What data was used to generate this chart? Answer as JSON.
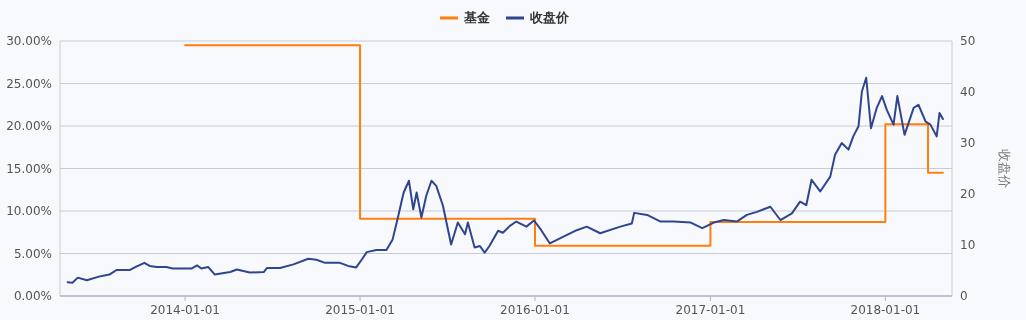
{
  "chart_data": {
    "type": "line",
    "grid": "y",
    "legend": "top",
    "y2label": "收盘价",
    "xlim": [
      "2013-04-15",
      "2018-05-20"
    ],
    "xticks": [
      "2014-01-01",
      "2015-01-01",
      "2016-01-01",
      "2017-01-01",
      "2018-01-01"
    ],
    "ylim": [
      0,
      30
    ],
    "yticks": [
      {
        "value": 0,
        "label": "0.00%"
      },
      {
        "value": 5,
        "label": "5.00%"
      },
      {
        "value": 10,
        "label": "10.00%"
      },
      {
        "value": 15,
        "label": "15.00%"
      },
      {
        "value": 20,
        "label": "20.00%"
      },
      {
        "value": 25,
        "label": "25.00%"
      },
      {
        "value": 30,
        "label": "30.00%"
      }
    ],
    "y2lim": [
      0,
      50
    ],
    "y2ticks": [
      0,
      10,
      20,
      30,
      40,
      50
    ],
    "series": [
      {
        "name": "基金",
        "type": "step",
        "color": "#ff7f0e",
        "x": [
          "2014-01-01",
          "2015-01-01",
          "2016-01-01",
          "2017-01-01",
          "2018-01-01",
          "2018-03-31",
          "2018-05-01"
        ],
        "values": [
          29.5,
          9.1,
          5.9,
          8.7,
          20.2,
          14.5,
          14.5
        ]
      },
      {
        "name": "收盘价",
        "type": "line",
        "axis": "y2",
        "color": "#2f4590",
        "x": [
          "2013-05-01",
          "2013-05-11",
          "2013-05-22",
          "2013-06-10",
          "2013-07-05",
          "2013-07-27",
          "2013-08-11",
          "2013-09-08",
          "2013-09-20",
          "2013-10-08",
          "2013-10-19",
          "2013-11-03",
          "2013-11-23",
          "2013-12-06",
          "2014-01-15",
          "2014-01-26",
          "2014-02-04",
          "2014-02-18",
          "2014-03-04",
          "2014-04-05",
          "2014-04-19",
          "2014-05-16",
          "2014-06-14",
          "2014-06-21",
          "2014-07-18",
          "2014-08-15",
          "2014-09-15",
          "2014-10-02",
          "2014-10-20",
          "2014-11-20",
          "2014-12-07",
          "2014-12-24",
          "2015-01-05",
          "2015-01-15",
          "2015-02-04",
          "2015-02-25",
          "2015-03-10",
          "2015-03-21",
          "2015-03-28",
          "2015-04-02",
          "2015-04-13",
          "2015-04-22",
          "2015-04-29",
          "2015-05-09",
          "2015-05-19",
          "2015-05-30",
          "2015-06-09",
          "2015-06-23",
          "2015-07-10",
          "2015-07-24",
          "2015-08-08",
          "2015-08-14",
          "2015-08-28",
          "2015-09-08",
          "2015-09-18",
          "2015-09-28",
          "2015-10-16",
          "2015-10-26",
          "2015-11-09",
          "2015-11-23",
          "2015-12-14",
          "2015-12-30",
          "2016-01-14",
          "2016-02-01",
          "2016-02-22",
          "2016-03-28",
          "2016-04-18",
          "2016-05-16",
          "2016-06-27",
          "2016-07-21",
          "2016-07-26",
          "2016-08-22",
          "2016-09-19",
          "2016-10-16",
          "2016-11-21",
          "2016-12-15",
          "2017-01-08",
          "2017-01-29",
          "2017-02-25",
          "2017-03-18",
          "2017-04-08",
          "2017-05-06",
          "2017-05-27",
          "2017-06-20",
          "2017-07-07",
          "2017-07-20",
          "2017-07-31",
          "2017-08-18",
          "2017-09-08",
          "2017-09-18",
          "2017-10-02",
          "2017-10-16",
          "2017-10-26",
          "2017-11-06",
          "2017-11-13",
          "2017-11-22",
          "2017-12-02",
          "2017-12-14",
          "2017-12-25",
          "2018-01-04",
          "2018-01-18",
          "2018-01-26",
          "2018-02-10",
          "2018-03-01",
          "2018-03-11",
          "2018-03-26",
          "2018-04-05",
          "2018-04-18",
          "2018-04-24",
          "2018-05-01"
        ],
        "values": [
          2.7,
          2.6,
          3.6,
          3.1,
          3.8,
          4.2,
          5.1,
          5.1,
          5.7,
          6.5,
          5.9,
          5.7,
          5.7,
          5.4,
          5.4,
          6.0,
          5.4,
          5.7,
          4.2,
          4.7,
          5.2,
          4.6,
          4.7,
          5.5,
          5.5,
          6.2,
          7.3,
          7.1,
          6.5,
          6.5,
          5.9,
          5.6,
          7.2,
          8.6,
          9.0,
          9.0,
          11.1,
          15.4,
          18.3,
          20.3,
          22.6,
          17.0,
          20.3,
          15.4,
          19.6,
          22.6,
          21.6,
          17.7,
          10.1,
          14.4,
          12.1,
          14.4,
          9.5,
          9.8,
          8.5,
          9.8,
          12.8,
          12.4,
          13.7,
          14.6,
          13.6,
          14.8,
          12.9,
          10.3,
          11.3,
          12.9,
          13.6,
          12.3,
          13.6,
          14.2,
          16.3,
          15.9,
          14.6,
          14.6,
          14.4,
          13.3,
          14.4,
          14.9,
          14.6,
          15.9,
          16.5,
          17.5,
          14.9,
          16.2,
          18.5,
          17.8,
          22.8,
          20.5,
          23.4,
          27.7,
          30.0,
          28.7,
          31.3,
          33.3,
          40.1,
          42.8,
          32.9,
          36.9,
          39.2,
          36.5,
          33.6,
          39.2,
          31.6,
          36.9,
          37.5,
          34.2,
          33.6,
          31.3,
          35.9,
          34.7
        ]
      }
    ]
  }
}
